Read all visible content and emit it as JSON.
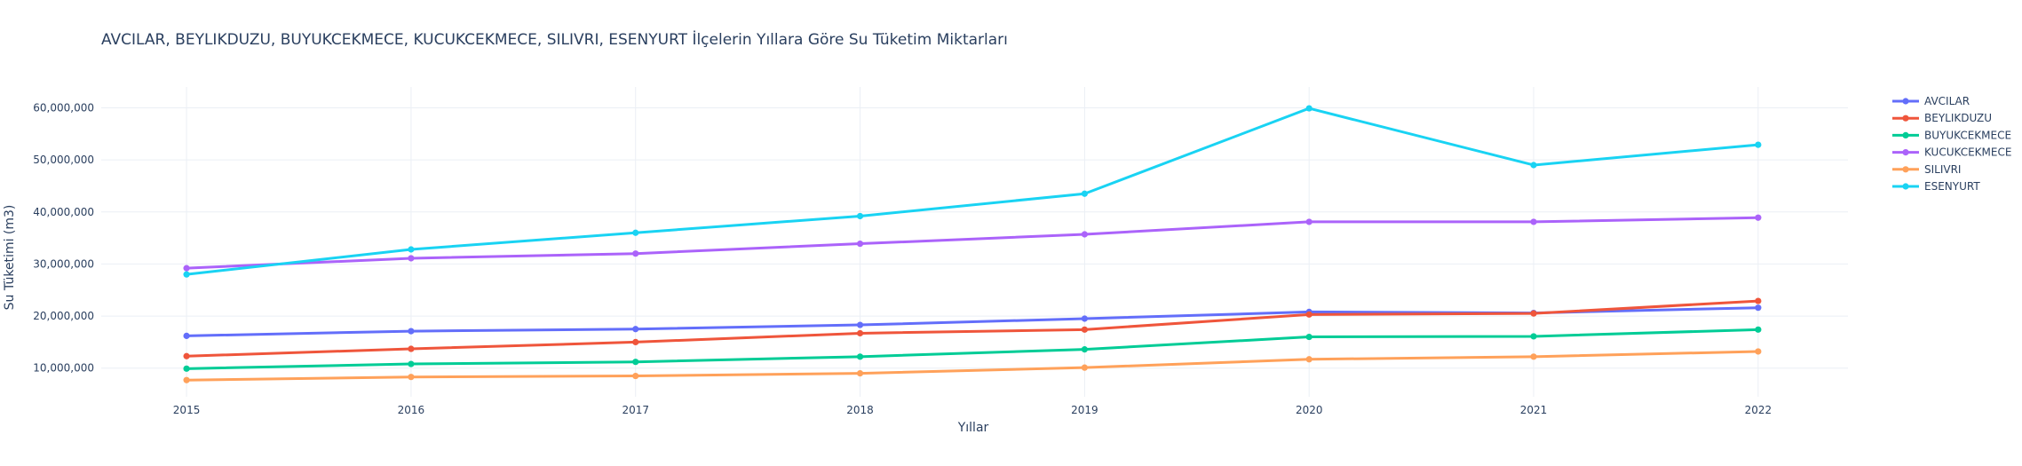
{
  "chart_data": {
    "type": "line",
    "title": "AVCILAR, BEYLIKDUZU, BUYUKCEKMECE, KUCUKCEKMECE, SILIVRI, ESENYURT İlçelerin Yıllara Göre Su Tüketim Miktarları",
    "xlabel": "Yıllar",
    "ylabel": "Su Tüketimi (m3)",
    "x": [
      2015,
      2016,
      2017,
      2018,
      2019,
      2020,
      2021,
      2022
    ],
    "x_tick_labels": [
      "2015",
      "2016",
      "2017",
      "2018",
      "2019",
      "2020",
      "2021",
      "2022"
    ],
    "y_ticks": [
      10000000,
      20000000,
      30000000,
      40000000,
      50000000,
      60000000
    ],
    "y_tick_labels": [
      "10,000,000",
      "20,000,000",
      "30,000,000",
      "40,000,000",
      "50,000,000",
      "60,000,000"
    ],
    "xlim": [
      2014.62,
      2022.4
    ],
    "ylim": [
      4500000,
      64000000
    ],
    "grid": true,
    "legend_position": "top-right",
    "series": [
      {
        "name": "AVCILAR",
        "color": "#636efa",
        "values": [
          16200000,
          17100000,
          17500000,
          18300000,
          19500000,
          20800000,
          20600000,
          21600000
        ]
      },
      {
        "name": "BEYLIKDUZU",
        "color": "#ef553b",
        "values": [
          12300000,
          13700000,
          15000000,
          16700000,
          17400000,
          20300000,
          20500000,
          22900000
        ]
      },
      {
        "name": "BUYUKCEKMECE",
        "color": "#00cc96",
        "values": [
          9900000,
          10800000,
          11200000,
          12200000,
          13600000,
          16000000,
          16100000,
          17400000
        ]
      },
      {
        "name": "KUCUKCEKMECE",
        "color": "#ab63fa",
        "values": [
          29200000,
          31100000,
          32000000,
          33900000,
          35700000,
          38100000,
          38100000,
          38900000
        ]
      },
      {
        "name": "SILIVRI",
        "color": "#ffa15a",
        "values": [
          7700000,
          8300000,
          8500000,
          9000000,
          10100000,
          11700000,
          12200000,
          13200000
        ]
      },
      {
        "name": "ESENYURT",
        "color": "#19d3f3",
        "values": [
          28000000,
          32800000,
          36000000,
          39200000,
          43500000,
          59900000,
          49000000,
          52900000
        ]
      }
    ]
  }
}
